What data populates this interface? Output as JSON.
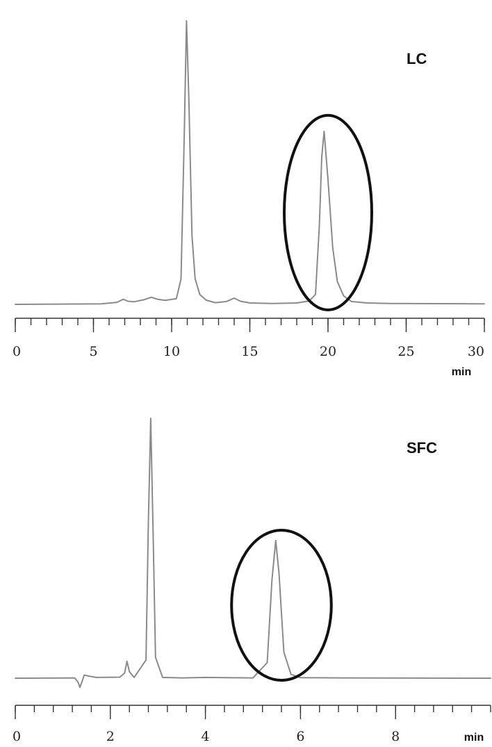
{
  "chart_data": [
    {
      "type": "line",
      "label": "LC",
      "xlabel": "min",
      "xlim": [
        0,
        30
      ],
      "xticks_major": [
        0,
        5,
        10,
        15,
        20,
        25,
        30
      ],
      "xtick_labels": [
        "0",
        "5",
        "10",
        "15",
        "20",
        "25",
        "30"
      ],
      "minor_tick_step": 1,
      "ylim": [
        0,
        100
      ],
      "grid": false,
      "series": [
        {
          "x": [
            0,
            5.5,
            6.5,
            6.9,
            7.2,
            7.6,
            8.2,
            8.7,
            9.1,
            9.6,
            10.3,
            10.6,
            10.8,
            10.95,
            11.1,
            11.3,
            11.5,
            11.8,
            12.2,
            12.8,
            13.5,
            14.0,
            14.4,
            15.0,
            16.5,
            18.0,
            18.8,
            19.2,
            19.45,
            19.6,
            19.75,
            20.0,
            20.3,
            20.6,
            21.0,
            21.5,
            22.5,
            24.0,
            30.0
          ],
          "y": [
            0,
            0.2,
            0.7,
            1.8,
            1.1,
            0.9,
            1.6,
            2.5,
            1.8,
            1.4,
            2.0,
            9.0,
            58.0,
            100.0,
            72.0,
            24.0,
            9.0,
            3.5,
            1.5,
            0.6,
            1.0,
            2.2,
            1.1,
            0.5,
            0.3,
            0.5,
            1.2,
            3.5,
            28.0,
            52.0,
            61.0,
            44.0,
            20.0,
            8.0,
            3.0,
            1.0,
            0.5,
            0.3,
            0.2
          ]
        }
      ],
      "highlight": {
        "x_center": 20.0,
        "x_halfwidth": 2.8
      }
    },
    {
      "type": "line",
      "label": "SFC",
      "xlabel": "min",
      "xlim": [
        0,
        10
      ],
      "xticks_major": [
        0,
        2,
        4,
        6,
        8
      ],
      "xtick_labels": [
        "0",
        "2",
        "4",
        "6",
        "8"
      ],
      "minor_tick_step": 0.4,
      "ylim": [
        0,
        100
      ],
      "grid": false,
      "series": [
        {
          "x": [
            0,
            1.25,
            1.32,
            1.36,
            1.4,
            1.45,
            1.55,
            1.7,
            2.2,
            2.3,
            2.35,
            2.4,
            2.5,
            2.75,
            2.8,
            2.85,
            2.9,
            2.95,
            3.1,
            3.5,
            4.0,
            5.0,
            5.3,
            5.4,
            5.48,
            5.55,
            5.65,
            5.8,
            6.0,
            7.0,
            10.0
          ],
          "y": [
            0,
            0.1,
            -1.5,
            -3.5,
            -1.5,
            1.2,
            0.8,
            0.3,
            0.4,
            2.0,
            6.5,
            2.5,
            0.3,
            7.0,
            60.0,
            100.0,
            55.0,
            8.0,
            0.3,
            0.1,
            0.3,
            0.1,
            6.0,
            38.0,
            53.0,
            40.0,
            10.0,
            1.5,
            0.2,
            0.1,
            0
          ]
        }
      ],
      "highlight": {
        "x_center": 5.6,
        "x_halfwidth": 1.05
      }
    }
  ]
}
